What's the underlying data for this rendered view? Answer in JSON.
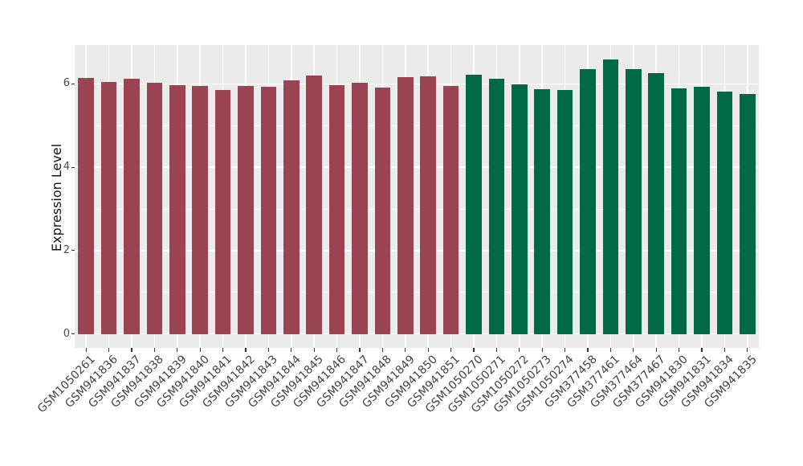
{
  "chart_data": {
    "type": "bar",
    "title": "",
    "xlabel": "",
    "ylabel": "Expression Level",
    "yticks": [
      0,
      2,
      4,
      6
    ],
    "ytick_labels": [
      "0",
      "2",
      "4",
      "6"
    ],
    "yminor_gridlines": [
      1,
      3,
      5
    ],
    "ylim": [
      0,
      6.93
    ],
    "grid": "on",
    "legend_position": "none",
    "panel_background": "#EBEBEB",
    "gridline_color": "#FFFFFF",
    "axis_text_color": "#4D4D4D",
    "tick_mark_color": "#333333",
    "categories": [
      "GSM1050261",
      "GSM941836",
      "GSM941837",
      "GSM941838",
      "GSM941839",
      "GSM941840",
      "GSM941841",
      "GSM941842",
      "GSM941843",
      "GSM941844",
      "GSM941845",
      "GSM941846",
      "GSM941847",
      "GSM941848",
      "GSM941849",
      "GSM941850",
      "GSM941851",
      "GSM1050270",
      "GSM1050271",
      "GSM1050272",
      "GSM1050273",
      "GSM1050274",
      "GSM377458",
      "GSM377461",
      "GSM377464",
      "GSM377467",
      "GSM941830",
      "GSM941831",
      "GSM941834",
      "GSM941835"
    ],
    "values": [
      6.14,
      6.05,
      6.12,
      6.03,
      5.96,
      5.95,
      5.85,
      5.95,
      5.92,
      6.09,
      6.2,
      5.96,
      6.03,
      5.9,
      6.16,
      6.17,
      5.94,
      6.22,
      6.12,
      5.99,
      5.87,
      5.85,
      6.35,
      6.58,
      6.35,
      6.26,
      5.89,
      5.92,
      5.81,
      5.75
    ],
    "groups": [
      {
        "color": "#9A4452",
        "start_index": 0,
        "end_index": 16
      },
      {
        "color": "#006946",
        "start_index": 17,
        "end_index": 29
      }
    ]
  }
}
